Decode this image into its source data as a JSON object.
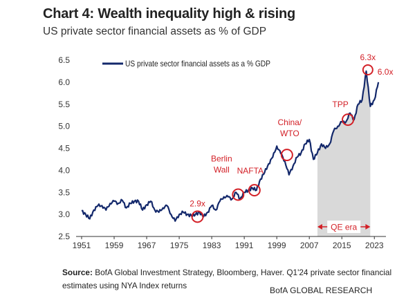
{
  "title": "Chart 4: Wealth inequality high & rising",
  "subtitle": "US private sector financial assets as % of GDP",
  "source_label": "Source:",
  "source_text": "BofA Global Investment Strategy, Bloomberg, Haver. Q1'24 private sector financial estimates using NYA Index returns",
  "credit": "BofA GLOBAL RESEARCH",
  "colors": {
    "line": "#13286b",
    "highlight": "#d32027",
    "shade": "#d9d9d9",
    "axis": "#333333"
  },
  "chart_data": {
    "type": "line",
    "title": "Chart 4: Wealth inequality high & rising",
    "subtitle": "US private sector financial assets as % of GDP",
    "xlabel": "",
    "ylabel": "",
    "xlim": [
      1951,
      2025
    ],
    "ylim": [
      2.5,
      6.5
    ],
    "x_ticks": [
      1951,
      1959,
      1967,
      1975,
      1983,
      1991,
      1999,
      2007,
      2015,
      2023
    ],
    "y_ticks": [
      2.5,
      3.0,
      3.5,
      4.0,
      4.5,
      5.0,
      5.5,
      6.0,
      6.5
    ],
    "y_tick_labels": [
      "2.5",
      "3.0",
      "3.5",
      "4.0",
      "4.5",
      "5.0",
      "5.5",
      "6.0",
      "6.5"
    ],
    "grid": false,
    "legend": {
      "position": "top-left",
      "entries": [
        "US private sector financial assets as a % GDP"
      ]
    },
    "series": [
      {
        "name": "US private sector financial assets as a % GDP",
        "x": [
          1951,
          1952,
          1953,
          1954,
          1955,
          1956,
          1957,
          1958,
          1959,
          1960,
          1961,
          1962,
          1963,
          1964,
          1965,
          1966,
          1967,
          1968,
          1969,
          1970,
          1971,
          1972,
          1973,
          1974,
          1975,
          1976,
          1977,
          1978,
          1979,
          1980,
          1981,
          1982,
          1983,
          1984,
          1985,
          1986,
          1987,
          1988,
          1989,
          1990,
          1991,
          1992,
          1993,
          1994,
          1995,
          1996,
          1997,
          1998,
          1999,
          2000,
          2001,
          2002,
          2003,
          2004,
          2005,
          2006,
          2007,
          2008,
          2009,
          2010,
          2011,
          2012,
          2013,
          2014,
          2015,
          2016,
          2017,
          2018,
          2019,
          2020,
          2021,
          2022,
          2023,
          2024
        ],
        "values": [
          3.08,
          3.0,
          2.9,
          3.1,
          3.2,
          3.2,
          3.1,
          3.25,
          3.3,
          3.25,
          3.32,
          3.15,
          3.25,
          3.3,
          3.3,
          3.1,
          3.22,
          3.3,
          3.1,
          3.05,
          3.15,
          3.2,
          3.0,
          2.85,
          3.0,
          3.05,
          3.0,
          2.97,
          3.0,
          3.05,
          2.95,
          3.05,
          3.2,
          3.1,
          3.3,
          3.4,
          3.4,
          3.35,
          3.5,
          3.35,
          3.5,
          3.55,
          3.6,
          3.55,
          3.8,
          3.95,
          4.15,
          4.3,
          4.55,
          4.38,
          4.2,
          3.9,
          4.1,
          4.3,
          4.4,
          4.6,
          4.7,
          4.25,
          4.4,
          4.6,
          4.5,
          4.6,
          4.9,
          5.0,
          5.1,
          5.1,
          5.3,
          5.15,
          5.5,
          5.6,
          6.25,
          5.45,
          5.6,
          6.0
        ]
      }
    ],
    "shaded_regions": [
      {
        "label": "QE era",
        "x_start": 2009,
        "x_end": 2022
      }
    ],
    "annotations": [
      {
        "label": "2.9x",
        "x": 1979.5,
        "y": 2.95
      },
      {
        "label": "Berlin Wall",
        "x": 1989.5,
        "y": 3.45
      },
      {
        "label": "NAFTA",
        "x": 1993.5,
        "y": 3.55
      },
      {
        "label": "China/ WTO",
        "x": 2001.5,
        "y": 4.35
      },
      {
        "label": "TPP",
        "x": 2016.5,
        "y": 5.15
      },
      {
        "label": "6.3x",
        "x": 2021.4,
        "y": 6.28
      },
      {
        "label": "6.0x",
        "x": 2024,
        "y": 6.0
      }
    ]
  }
}
